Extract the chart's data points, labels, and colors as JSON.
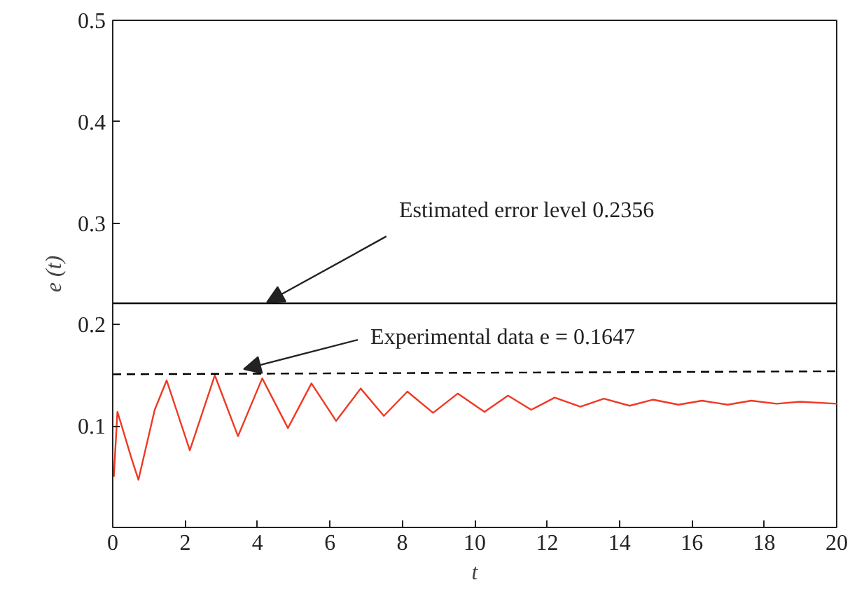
{
  "chart_data": {
    "type": "line",
    "xlabel": "t",
    "ylabel": "e (t)",
    "xlim": [
      0,
      20
    ],
    "ylim": [
      0,
      0.5
    ],
    "xticks": [
      0,
      2,
      4,
      6,
      8,
      10,
      12,
      14,
      16,
      18,
      20
    ],
    "yticks": [
      {
        "value": 0,
        "label": null
      },
      0.1,
      0.2,
      0.3,
      0.4,
      0.5
    ],
    "grid": false,
    "series": [
      {
        "color": "#ee3a24",
        "line_style": "solid",
        "x": [
          0.03,
          0.13,
          0.52,
          0.71,
          1.16,
          1.49,
          2.13,
          2.82,
          3.46,
          4.13,
          4.84,
          5.49,
          6.17,
          6.85,
          7.49,
          8.14,
          8.85,
          9.53,
          10.27,
          10.92,
          11.56,
          12.21,
          12.92,
          13.57,
          14.28,
          14.92,
          15.63,
          16.28,
          16.99,
          17.64,
          18.34,
          18.99,
          20
        ],
        "values": [
          0.05,
          0.114,
          0.068,
          0.047,
          0.116,
          0.145,
          0.076,
          0.15,
          0.09,
          0.147,
          0.098,
          0.142,
          0.105,
          0.137,
          0.11,
          0.134,
          0.113,
          0.132,
          0.114,
          0.13,
          0.116,
          0.128,
          0.119,
          0.127,
          0.12,
          0.126,
          0.121,
          0.125,
          0.121,
          0.125,
          0.122,
          0.124,
          0.122
        ]
      },
      {
        "color": "#000000",
        "line_style": "solid",
        "x": [
          0,
          20
        ],
        "values": [
          0.221,
          0.221
        ]
      },
      {
        "color": "#000000",
        "line_style": "dashed",
        "x": [
          0,
          20
        ],
        "values": [
          0.151,
          0.154
        ]
      }
    ],
    "annotations": [
      {
        "text": "Estimated error level 0.2356",
        "x": 4.26,
        "y": 0.222
      },
      {
        "text": "Experimental data e = 0.1647",
        "x": 3.62,
        "y": 0.156
      }
    ]
  }
}
